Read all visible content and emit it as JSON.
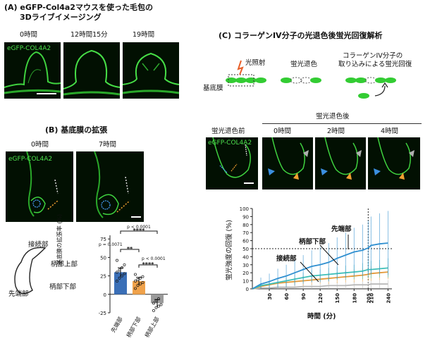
{
  "panel_a": {
    "title_line1": "(A) eGFP-Col4a2マウスを使った毛包の",
    "title_line2": "3Dライブイメージング",
    "timepoints": [
      "0時間",
      "12時間15分",
      "19時間"
    ],
    "channel": "eGFP-COL4A2"
  },
  "panel_b": {
    "title": "(B) 基底膜の拡張",
    "timepoints": [
      "0時間",
      "7時間"
    ],
    "channel": "eGFP-COL4A2",
    "schematic_labels": {
      "junction": "接続部",
      "upper_stalk": "柄部上部",
      "lower_stalk": "柄部下部",
      "tip": "先端部"
    },
    "chart": {
      "ylabel": "基底膜の拡張率 (%)",
      "yticks": [
        "-25",
        "0",
        "25",
        "50",
        "75"
      ],
      "categories": [
        "先端部",
        "柄部下部",
        "柄部上部"
      ],
      "sig": {
        "top_p": "p < 0.0001",
        "top_stars": "****",
        "left_p": "p = 0.0071",
        "left_stars": "**",
        "right_p": "p < 0.0001",
        "right_stars": "****"
      }
    }
  },
  "panel_c": {
    "title": "(C) コラーゲンIV分子の光退色後蛍光回復解析",
    "schematic": {
      "irradiation": "光照射",
      "bleach": "蛍光退色",
      "basement_membrane": "基底膜",
      "recovery_line1": "コラーゲンIV分子の",
      "recovery_line2": "取り込みによる蛍光回復"
    },
    "image_labels": {
      "before": "蛍光退色前",
      "after": "蛍光退色後",
      "times": [
        "0時間",
        "2時間",
        "4時間"
      ],
      "channel": "eGFP-COL4A2"
    },
    "chart": {
      "ylabel": "蛍光強度の回復 (%)",
      "xlabel": "時間 (分)",
      "annotations": [
        "先端部",
        "柄部下部",
        "接続部"
      ]
    }
  },
  "chart_data": [
    {
      "type": "bar",
      "ylabel": "基底膜の拡張率 (%)",
      "ylim": [
        -25,
        80
      ],
      "categories": [
        "先端部",
        "柄部下部",
        "柄部上部"
      ],
      "values": [
        30,
        18,
        -12
      ],
      "errors": [
        6,
        5,
        5
      ],
      "points": [
        [
          18,
          22,
          25,
          28,
          30,
          33,
          36,
          40,
          46
        ],
        [
          8,
          12,
          14,
          16,
          18,
          20,
          22,
          24,
          27
        ],
        [
          -22,
          -18,
          -16,
          -14,
          -12,
          -9,
          -6
        ]
      ],
      "colors": [
        "#3a6fb7",
        "#f0a24b",
        "#9a9a9a"
      ]
    },
    {
      "type": "line",
      "xlabel": "時間 (分)",
      "ylabel": "蛍光強度の回復 (%)",
      "xlim": [
        0,
        247
      ],
      "ylim": [
        0,
        100
      ],
      "xticks": [
        30,
        60,
        90,
        120,
        150,
        180,
        205,
        210,
        240
      ],
      "yticks": [
        0,
        10,
        20,
        30,
        40,
        50,
        60,
        70,
        80,
        90,
        100
      ],
      "x": [
        0,
        15,
        30,
        45,
        60,
        75,
        90,
        105,
        120,
        135,
        150,
        165,
        180,
        195,
        205,
        210,
        225,
        240
      ],
      "series": [
        {
          "name": "先端部",
          "values": [
            0,
            6,
            9,
            13,
            16,
            20,
            24,
            28,
            30,
            33,
            38,
            42,
            46,
            48,
            51,
            54,
            56,
            57
          ],
          "err": [
            0,
            8,
            10,
            12,
            14,
            16,
            18,
            20,
            22,
            24,
            26,
            28,
            30,
            32,
            34,
            36,
            38,
            40
          ],
          "color": "#2f8fd0"
        },
        {
          "name": "柄部下部",
          "values": [
            0,
            4,
            6,
            8,
            10,
            12,
            14,
            16,
            17,
            18,
            19,
            20,
            21,
            22,
            24,
            24,
            25,
            26
          ],
          "err": [
            0,
            3,
            4,
            5,
            5,
            6,
            6,
            7,
            7,
            8,
            8,
            9,
            9,
            10,
            10,
            11,
            11,
            12
          ],
          "color": "#3ec0b8"
        },
        {
          "name": "接続部",
          "values": [
            0,
            3,
            5,
            7,
            8,
            9,
            10,
            11,
            12,
            13,
            14,
            15,
            16,
            17,
            18,
            19,
            20,
            21
          ],
          "err": [
            0,
            3,
            4,
            4,
            5,
            5,
            6,
            6,
            6,
            7,
            7,
            7,
            8,
            8,
            8,
            9,
            9,
            9
          ],
          "color": "#e39a3a"
        },
        {
          "name": "",
          "values": [
            0,
            1,
            1,
            2,
            2,
            2,
            3,
            3,
            3,
            4,
            4,
            4,
            5,
            5,
            5,
            6,
            6,
            6
          ],
          "err": [
            0,
            2,
            2,
            2,
            3,
            3,
            3,
            3,
            3,
            4,
            4,
            4,
            4,
            4,
            4,
            5,
            5,
            5
          ],
          "color": "#b8b8b8"
        }
      ],
      "reference_y": 50,
      "reference_x": 205
    }
  ]
}
